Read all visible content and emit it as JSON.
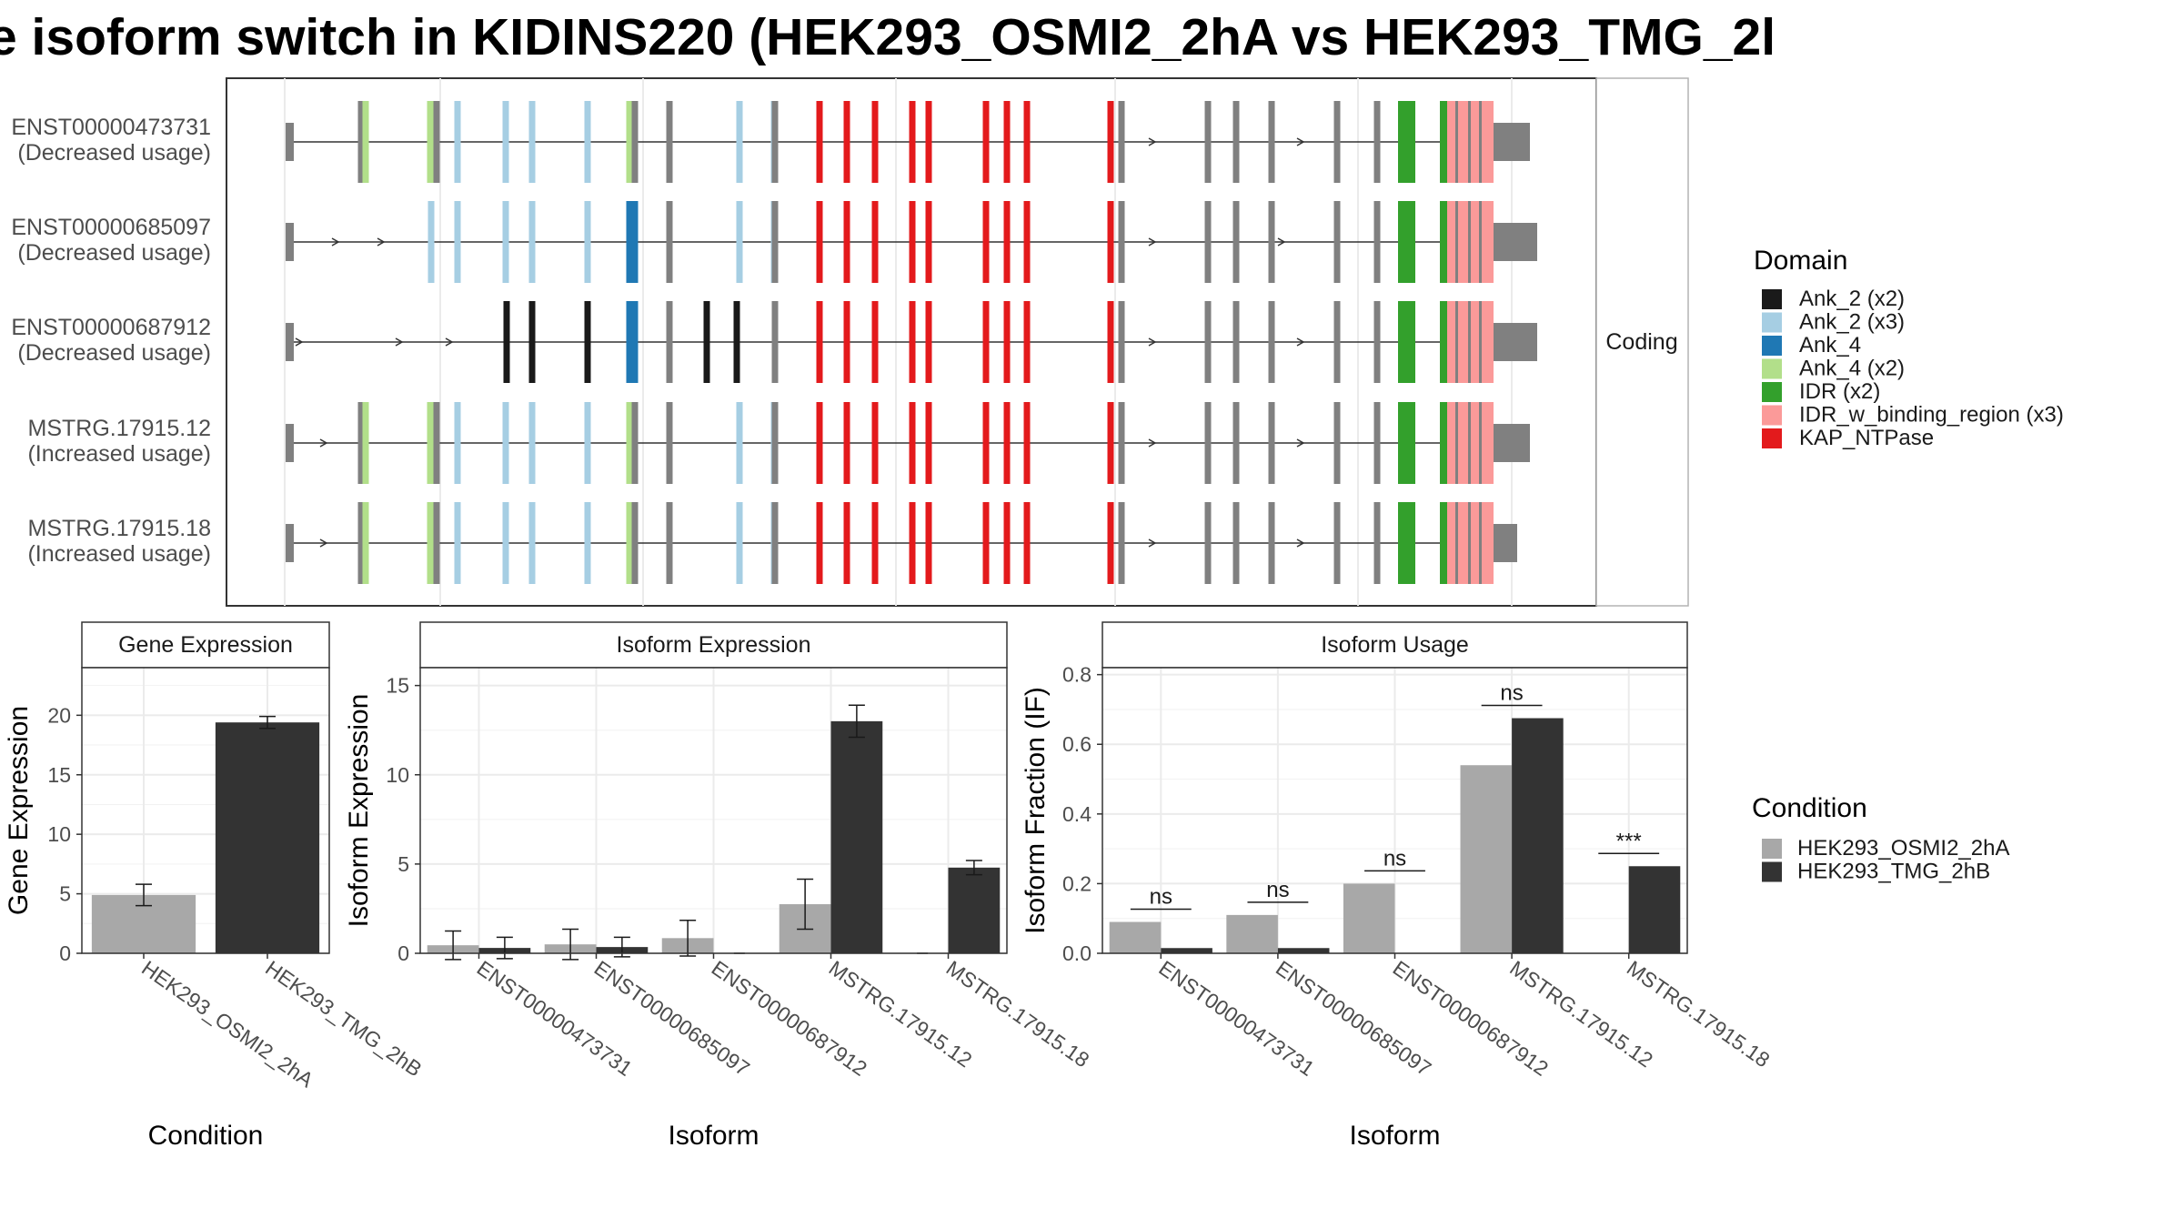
{
  "title": "e isoform switch in KIDINS220 (HEK293_OSMI2_2hA vs HEK293_TMG_2l",
  "strip_label": "Coding",
  "transcripts": [
    {
      "id": "ENST00000473731",
      "usage": "(Decreased usage)"
    },
    {
      "id": "ENST00000685097",
      "usage": "(Decreased usage)"
    },
    {
      "id": "ENST00000687912",
      "usage": "(Decreased usage)"
    },
    {
      "id": "MSTRG.17915.12",
      "usage": "(Increased usage)"
    },
    {
      "id": "MSTRG.17915.18",
      "usage": "(Increased usage)"
    }
  ],
  "domain_legend": {
    "title": "Domain",
    "items": [
      {
        "label": "Ank_2 (x2)",
        "color": "#1a1a1a"
      },
      {
        "label": "Ank_2 (x3)",
        "color": "#a6cee3"
      },
      {
        "label": "Ank_4",
        "color": "#1f78b4"
      },
      {
        "label": "Ank_4 (x2)",
        "color": "#b2df8a"
      },
      {
        "label": "IDR (x2)",
        "color": "#33a02c"
      },
      {
        "label": "IDR_w_binding_region (x3)",
        "color": "#fb9a99"
      },
      {
        "label": "KAP_NTPase",
        "color": "#e31a1c"
      }
    ]
  },
  "condition_legend": {
    "title": "Condition",
    "items": [
      {
        "label": "HEK293_OSMI2_2hA",
        "color": "#a8a8a8"
      },
      {
        "label": "HEK293_TMG_2hB",
        "color": "#333333"
      }
    ]
  },
  "chart_data": [
    {
      "type": "bar",
      "title": "Gene Expression",
      "xlabel": "Condition",
      "ylabel": "Gene Expression",
      "categories": [
        "HEK293_OSMI2_2hA",
        "HEK293_TMG_2hB"
      ],
      "values": [
        4.9,
        19.4
      ],
      "errors": [
        0.9,
        0.5
      ],
      "ylim": [
        0,
        24
      ],
      "yticks": [
        "0",
        "5",
        "10",
        "15",
        "20"
      ]
    },
    {
      "type": "bar",
      "title": "Isoform Expression",
      "xlabel": "Isoform",
      "ylabel": "Isoform Expression",
      "categories": [
        "ENST00000473731",
        "ENST00000685097",
        "ENST00000687912",
        "MSTRG.17915.12",
        "MSTRG.17915.18"
      ],
      "series": [
        {
          "name": "HEK293_OSMI2_2hA",
          "values": [
            0.45,
            0.5,
            0.85,
            2.75,
            0.0
          ],
          "errors": [
            0.8,
            0.85,
            1.0,
            1.4,
            0.0
          ]
        },
        {
          "name": "HEK293_TMG_2hB",
          "values": [
            0.3,
            0.35,
            0.0,
            13.0,
            4.8
          ],
          "errors": [
            0.6,
            0.55,
            0.0,
            0.9,
            0.4
          ]
        }
      ],
      "ylim": [
        0,
        16
      ],
      "yticks": [
        "0",
        "5",
        "10",
        "15"
      ]
    },
    {
      "type": "bar",
      "title": "Isoform Usage",
      "xlabel": "Isoform",
      "ylabel": "Isoform Fraction (IF)",
      "categories": [
        "ENST00000473731",
        "ENST00000685097",
        "ENST00000687912",
        "MSTRG.17915.12",
        "MSTRG.17915.18"
      ],
      "series": [
        {
          "name": "HEK293_OSMI2_2hA",
          "values": [
            0.09,
            0.11,
            0.2,
            0.54,
            0.0
          ]
        },
        {
          "name": "HEK293_TMG_2hB",
          "values": [
            0.015,
            0.015,
            0.0,
            0.675,
            0.25
          ]
        }
      ],
      "significance": [
        "ns",
        "ns",
        "ns",
        "ns",
        "***"
      ],
      "ylim": [
        0,
        0.82
      ],
      "yticks": [
        "0.0",
        "0.2",
        "0.4",
        "0.6",
        "0.8"
      ]
    }
  ]
}
